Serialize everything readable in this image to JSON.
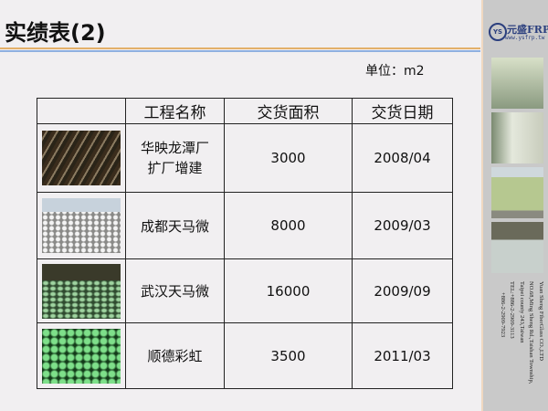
{
  "title": "实绩表(2)",
  "unit": "单位：m2",
  "logo": {
    "badge": "YS",
    "brand": "元盛FRP",
    "url": "www.ysfrp.tw"
  },
  "company": {
    "lines": [
      "Yuan Sheng FiberGlass CO.,LTD",
      "NO.68,Ming Sheng Rd.,Taishan Township,",
      "Taipei county 243,Taiwan",
      "TEL:+886-2-2909-3113",
      "+886-2-2909-7923"
    ]
  },
  "table": {
    "headers": [
      "",
      "工程名称",
      "交货面积",
      "交货日期"
    ],
    "rows": [
      {
        "name": "华映龙潭厂\n扩厂增建",
        "area": "3000",
        "date": "2008/04"
      },
      {
        "name": "成都天马微",
        "area": "8000",
        "date": "2009/03"
      },
      {
        "name": "武汉天马微",
        "area": "16000",
        "date": "2009/09"
      },
      {
        "name": "顺德彩虹",
        "area": "3500",
        "date": "2011/03"
      }
    ]
  }
}
